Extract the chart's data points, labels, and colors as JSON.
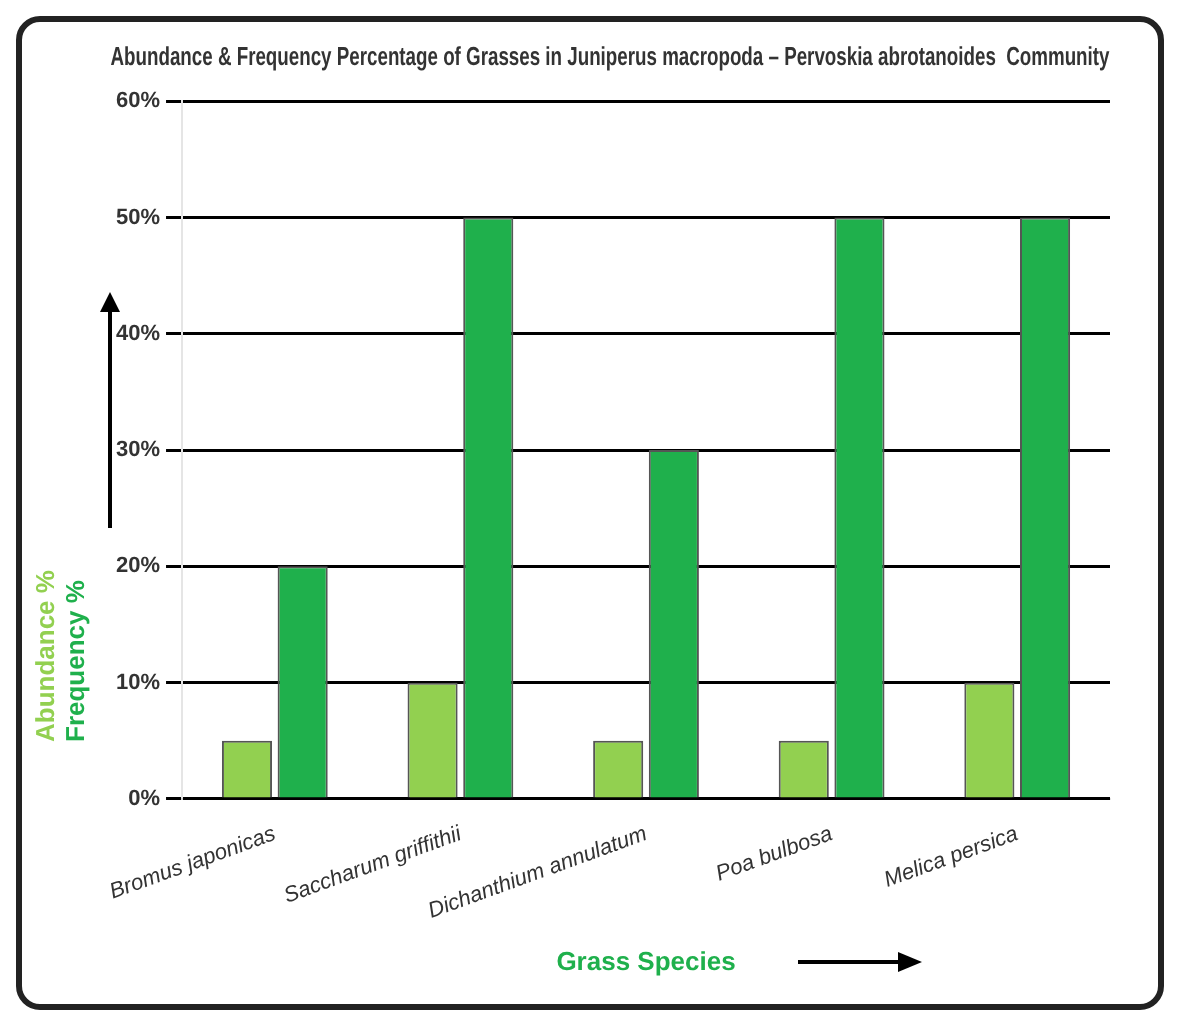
{
  "chart_data": {
    "type": "bar",
    "title": "Abundance & Frequency Percentage of Grasses in Juniperus macropoda – Pervoskia abrotanoides  Community",
    "xlabel": "Grass Species",
    "categories": [
      "Bromus japonicas",
      "Saccharum griffithii",
      "Dichanthium annulatum",
      "Poa bulbosa",
      "Melica persica"
    ],
    "series": [
      {
        "name": "Abundance %",
        "color": "#92d050",
        "values": [
          5,
          10,
          5,
          5,
          10
        ]
      },
      {
        "name": "Frequency %",
        "color": "#1fb04c",
        "values": [
          20,
          50,
          30,
          50,
          50
        ]
      }
    ],
    "ylim": [
      0,
      60
    ],
    "yticks": [
      {
        "value": 0,
        "label": "0%"
      },
      {
        "value": 10,
        "label": "10%"
      },
      {
        "value": 20,
        "label": "20%"
      },
      {
        "value": 30,
        "label": "30%"
      },
      {
        "value": 40,
        "label": "40%"
      },
      {
        "value": 50,
        "label": "50%"
      },
      {
        "value": 60,
        "label": "60%"
      }
    ],
    "grid": "y",
    "legend": "left"
  }
}
